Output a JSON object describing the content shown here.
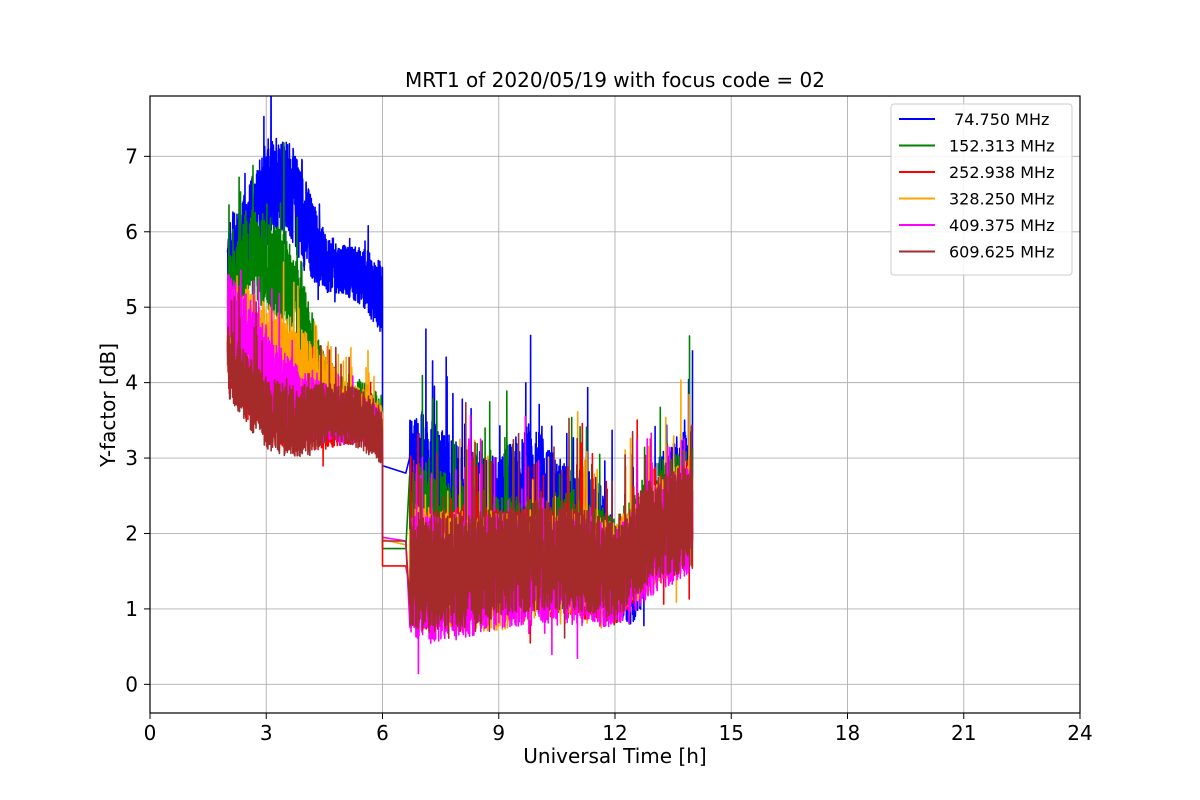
{
  "chart_data": {
    "type": "line",
    "title": "MRT1 of 2020/05/19 with focus code = 02",
    "xlabel": "Universal Time [h]",
    "ylabel": "Y-factor [dB]",
    "xlim": [
      0,
      24
    ],
    "ylim": [
      -0.38,
      7.8
    ],
    "xticks": [
      0,
      3,
      6,
      9,
      12,
      15,
      18,
      21,
      24
    ],
    "yticks": [
      0,
      1,
      2,
      3,
      4,
      5,
      6,
      7
    ],
    "grid": true,
    "legend_position": "top-right",
    "series": [
      {
        "name": " 74.750 MHz",
        "color": "#0000ff",
        "segments": [
          {
            "x": [
              2.0,
              2.5,
              3.0,
              3.5,
              4.0,
              4.5,
              5.0,
              5.5,
              6.0
            ],
            "base": [
              5.6,
              6.0,
              6.5,
              6.7,
              6.1,
              5.6,
              5.5,
              5.4,
              5.1
            ],
            "amp": [
              0.6,
              0.7,
              0.9,
              0.8,
              0.8,
              0.5,
              0.4,
              0.5,
              0.6
            ]
          },
          {
            "x": [
              6.0,
              6.6
            ],
            "base": [
              2.9,
              2.8
            ],
            "amp": [
              0,
              0
            ]
          },
          {
            "x": [
              6.7,
              7.0,
              8.0,
              9.0,
              9.8,
              10.5,
              11.5,
              12.0,
              12.5,
              13.0,
              13.5,
              14.0
            ],
            "base": [
              2.8,
              2.7,
              2.3,
              2.2,
              2.4,
              2.2,
              2.0,
              1.5,
              1.4,
              2.2,
              2.5,
              2.6
            ],
            "amp": [
              0.9,
              1.2,
              1.1,
              1.0,
              1.4,
              1.0,
              1.0,
              0.8,
              0.8,
              0.9,
              1.0,
              1.0
            ]
          }
        ]
      },
      {
        "name": "152.313 MHz",
        "color": "#008000",
        "segments": [
          {
            "x": [
              2.0,
              2.5,
              3.0,
              3.5,
              4.0,
              4.5,
              5.0,
              5.5,
              6.0
            ],
            "base": [
              5.2,
              5.7,
              5.6,
              5.4,
              4.7,
              4.0,
              3.7,
              3.7,
              3.5
            ],
            "amp": [
              0.5,
              0.8,
              0.8,
              0.8,
              0.7,
              0.5,
              0.4,
              0.4,
              0.4
            ]
          },
          {
            "x": [
              6.0,
              6.6
            ],
            "base": [
              1.8,
              1.8
            ],
            "amp": [
              0,
              0
            ]
          },
          {
            "x": [
              6.7,
              7.0,
              8.0,
              9.0,
              10.0,
              11.0,
              12.0,
              13.0,
              14.0
            ],
            "base": [
              2.0,
              2.1,
              1.9,
              1.7,
              1.7,
              1.8,
              1.5,
              2.2,
              2.4
            ],
            "amp": [
              1.0,
              1.1,
              1.0,
              1.0,
              1.0,
              1.0,
              0.9,
              0.9,
              1.0
            ]
          }
        ]
      },
      {
        "name": "252.938 MHz",
        "color": "#ff0000",
        "segments": [
          {
            "x": [
              2.0,
              2.5,
              3.0,
              3.5,
              4.0,
              4.5,
              5.0,
              5.5,
              6.0
            ],
            "base": [
              4.3,
              4.0,
              3.8,
              3.6,
              3.6,
              3.5,
              3.5,
              3.5,
              3.3
            ],
            "amp": [
              0.5,
              0.5,
              0.6,
              0.6,
              0.6,
              0.5,
              0.4,
              0.4,
              0.4
            ]
          },
          {
            "x": [
              6.0,
              6.6
            ],
            "base": [
              1.57,
              1.57
            ],
            "amp": [
              0,
              0
            ]
          },
          {
            "x": [
              6.7,
              7.0,
              8.0,
              9.0,
              10.0,
              11.0,
              12.0,
              13.0,
              14.0
            ],
            "base": [
              1.5,
              1.5,
              1.6,
              1.6,
              1.6,
              1.6,
              1.4,
              2.0,
              2.3
            ],
            "amp": [
              0.9,
              1.0,
              1.0,
              0.9,
              0.9,
              0.9,
              0.8,
              0.8,
              0.9
            ]
          }
        ]
      },
      {
        "name": "328.250 MHz",
        "color": "#ffa500",
        "segments": [
          {
            "x": [
              2.0,
              2.5,
              3.0,
              3.5,
              4.0,
              4.5,
              5.0,
              5.5,
              6.0
            ],
            "base": [
              4.8,
              4.7,
              4.5,
              4.3,
              4.2,
              4.0,
              3.7,
              3.6,
              3.4
            ],
            "amp": [
              0.6,
              0.7,
              0.7,
              0.7,
              0.6,
              0.5,
              0.4,
              0.4,
              0.4
            ]
          },
          {
            "x": [
              6.0,
              6.6
            ],
            "base": [
              1.92,
              1.85
            ],
            "amp": [
              0,
              0
            ]
          },
          {
            "x": [
              6.7,
              7.0,
              8.0,
              9.0,
              10.0,
              11.0,
              12.0,
              13.0,
              14.0
            ],
            "base": [
              1.6,
              1.6,
              1.5,
              1.5,
              1.6,
              1.6,
              1.5,
              2.0,
              2.3
            ],
            "amp": [
              1.0,
              1.0,
              1.0,
              1.0,
              0.9,
              0.9,
              0.8,
              0.9,
              0.9
            ]
          }
        ]
      },
      {
        "name": "409.375 MHz",
        "color": "#ff00ff",
        "segments": [
          {
            "x": [
              2.0,
              2.5,
              3.0,
              3.5,
              4.0,
              4.5,
              5.0,
              5.5,
              6.0
            ],
            "base": [
              5.0,
              4.6,
              4.2,
              3.9,
              3.7,
              3.6,
              3.5,
              3.5,
              3.3
            ],
            "amp": [
              0.6,
              0.7,
              0.7,
              0.6,
              0.6,
              0.5,
              0.4,
              0.4,
              0.4
            ]
          },
          {
            "x": [
              6.0,
              6.6
            ],
            "base": [
              1.95,
              1.9
            ],
            "amp": [
              0,
              0
            ]
          },
          {
            "x": [
              6.7,
              7.0,
              8.0,
              9.0,
              10.0,
              11.0,
              12.0,
              13.0,
              14.0
            ],
            "base": [
              1.4,
              1.4,
              1.4,
              1.5,
              1.5,
              1.5,
              1.4,
              1.9,
              2.2
            ],
            "amp": [
              1.0,
              1.1,
              1.0,
              1.0,
              0.9,
              0.9,
              0.8,
              0.9,
              0.9
            ]
          }
        ]
      },
      {
        "name": "609.625 MHz",
        "color": "#a52a2a",
        "segments": [
          {
            "x": [
              2.0,
              2.5,
              3.0,
              3.5,
              4.0,
              4.5,
              5.0,
              5.5,
              6.0
            ],
            "base": [
              4.3,
              3.9,
              3.6,
              3.5,
              3.5,
              3.6,
              3.6,
              3.5,
              3.3
            ],
            "amp": [
              0.6,
              0.6,
              0.6,
              0.6,
              0.6,
              0.5,
              0.5,
              0.5,
              0.5
            ]
          },
          {
            "x": [
              6.0,
              6.6
            ],
            "base": [
              1.9,
              1.9
            ],
            "amp": [
              0,
              0
            ]
          },
          {
            "x": [
              6.7,
              7.0,
              8.0,
              9.0,
              10.0,
              11.0,
              12.0,
              13.0,
              14.0
            ],
            "base": [
              1.5,
              1.5,
              1.5,
              1.6,
              1.7,
              1.7,
              1.5,
              2.1,
              2.2
            ],
            "amp": [
              0.9,
              1.0,
              1.0,
              0.9,
              0.9,
              0.9,
              0.8,
              0.9,
              0.9
            ]
          }
        ]
      }
    ]
  }
}
